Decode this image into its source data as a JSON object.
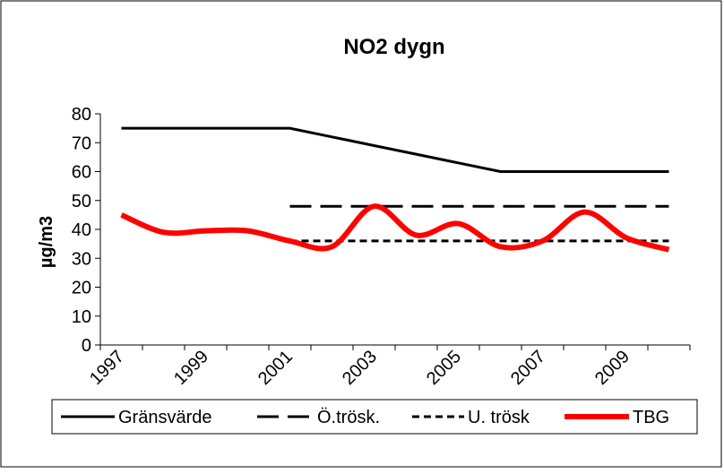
{
  "chart_data": {
    "type": "line",
    "title": "NO2 dygn",
    "ylabel": "µg/m3",
    "categories": [
      "1997",
      null,
      "1999",
      null,
      "2001",
      null,
      "2003",
      null,
      "2005",
      null,
      "2007",
      null,
      "2009",
      null
    ],
    "series": [
      {
        "name": "Gränsvärde",
        "color": "#000000",
        "dash": "solid",
        "values": [
          75,
          75,
          75,
          75,
          75,
          72,
          69,
          66,
          63,
          60,
          60,
          60,
          60,
          60
        ]
      },
      {
        "name": "Ö.trösk.",
        "color": "#000000",
        "dash": "long",
        "values": [
          null,
          null,
          null,
          null,
          48,
          48,
          48,
          48,
          48,
          48,
          48,
          48,
          48,
          48
        ]
      },
      {
        "name": "U. trösk",
        "color": "#000000",
        "dash": "short",
        "values": [
          null,
          null,
          null,
          null,
          36,
          36,
          36,
          36,
          36,
          36,
          36,
          36,
          36,
          36
        ]
      },
      {
        "name": "TBG",
        "color": "#ff0000",
        "dash": "solid",
        "values": [
          45,
          39,
          39.5,
          39.5,
          36,
          34,
          48,
          38,
          42,
          34,
          36,
          46,
          37,
          33
        ]
      }
    ],
    "ylim": [
      0,
      80
    ],
    "yticks": [
      0,
      10,
      20,
      30,
      40,
      50,
      60,
      70,
      80
    ],
    "grid": false,
    "legend": "bottom"
  }
}
